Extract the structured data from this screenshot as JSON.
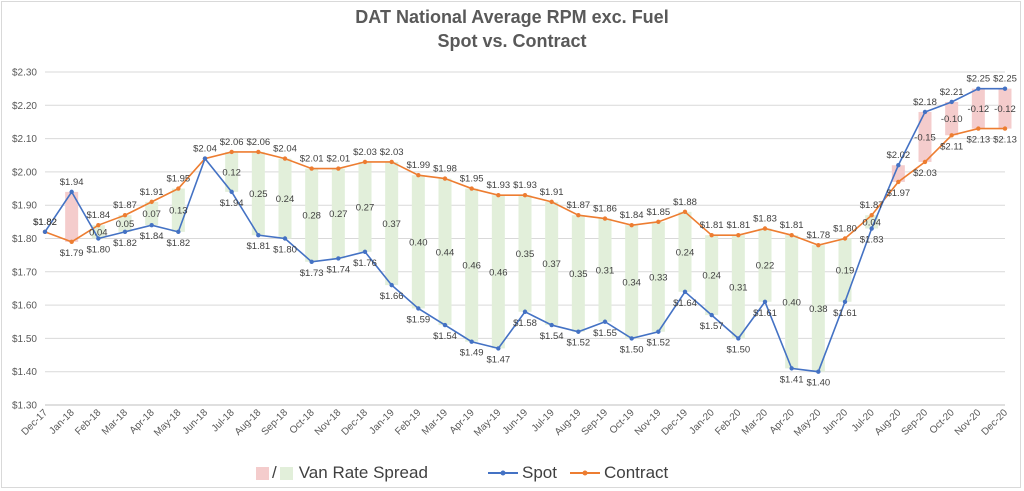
{
  "chart_data": {
    "type": "line",
    "title": "DAT National Average RPM exc. Fuel",
    "subtitle": "Spot vs. Contract",
    "categories": [
      "Dec-17",
      "Jan-18",
      "Feb-18",
      "Mar-18",
      "Apr-18",
      "May-18",
      "Jun-18",
      "Jul-18",
      "Aug-18",
      "Sep-18",
      "Oct-18",
      "Nov-18",
      "Dec-18",
      "Jan-19",
      "Feb-19",
      "Mar-19",
      "Apr-19",
      "May-19",
      "Jun-19",
      "Jul-19",
      "Aug-19",
      "Sep-19",
      "Oct-19",
      "Nov-19",
      "Dec-19",
      "Jan-20",
      "Feb-20",
      "Mar-20",
      "Apr-20",
      "May-20",
      "Jun-20",
      "Jul-20",
      "Aug-20",
      "Sep-20",
      "Oct-20",
      "Nov-20",
      "Dec-20"
    ],
    "series": [
      {
        "name": "Spot",
        "values": [
          1.82,
          1.94,
          1.8,
          1.82,
          1.84,
          1.82,
          2.04,
          1.94,
          1.81,
          1.8,
          1.73,
          1.74,
          1.76,
          1.66,
          1.59,
          1.54,
          1.49,
          1.47,
          1.58,
          1.54,
          1.52,
          1.55,
          1.5,
          1.52,
          1.64,
          1.57,
          1.5,
          1.61,
          1.41,
          1.4,
          1.61,
          1.83,
          2.02,
          2.18,
          2.21,
          2.25,
          2.25
        ]
      },
      {
        "name": "Contract",
        "values": [
          1.82,
          1.79,
          1.84,
          1.87,
          1.91,
          1.95,
          2.04,
          2.06,
          2.06,
          2.04,
          2.01,
          2.01,
          2.03,
          2.03,
          1.99,
          1.98,
          1.95,
          1.93,
          1.93,
          1.91,
          1.87,
          1.86,
          1.84,
          1.85,
          1.88,
          1.81,
          1.81,
          1.83,
          1.81,
          1.78,
          1.8,
          1.87,
          1.97,
          2.03,
          2.11,
          2.13,
          2.13
        ]
      }
    ],
    "spread_labels": [
      "",
      "",
      "0.04",
      "0.05",
      "0.07",
      "0.13",
      "",
      "0.12",
      "0.25",
      "0.24",
      "0.28",
      "0.27",
      "0.27",
      "0.37",
      "0.40",
      "0.44",
      "0.46",
      "0.46",
      "0.35",
      "0.37",
      "0.35",
      "0.31",
      "0.34",
      "0.33",
      "0.24",
      "0.24",
      "0.31",
      "0.22",
      "0.40",
      "0.38",
      "0.19",
      "0.04",
      "",
      "-0.15",
      "-0.10",
      "-0.12",
      "-0.12"
    ],
    "spot_labels": [
      "$1.82",
      "$1.94",
      "$1.80",
      "$1.82",
      "$1.84",
      "$1.82",
      "$2.04",
      "$1.94",
      "$1.81",
      "$1.80",
      "$1.73",
      "$1.74",
      "$1.76",
      "$1.66",
      "$1.59",
      "$1.54",
      "$1.49",
      "$1.47",
      "$1.58",
      "$1.54",
      "$1.52",
      "$1.55",
      "$1.50",
      "$1.52",
      "$1.64",
      "$1.57",
      "$1.50",
      "$1.61",
      "$1.41",
      "$1.40",
      "$1.61",
      "$1.83",
      "$2.02",
      "$2.18",
      "$2.21",
      "$2.25",
      "$2.25"
    ],
    "contract_labels": [
      "$1.82",
      "$1.79",
      "$1.84",
      "$1.87",
      "$1.91",
      "$1.95",
      "",
      "$2.06",
      "$2.06",
      "$2.04",
      "$2.01",
      "$2.01",
      "$2.03",
      "$2.03",
      "$1.99",
      "$1.98",
      "$1.95",
      "$1.93",
      "$1.93",
      "$1.91",
      "$1.87",
      "$1.86",
      "$1.84",
      "$1.85",
      "$1.88",
      "$1.81",
      "$1.81",
      "$1.83",
      "$1.81",
      "$1.78",
      "$1.80",
      "$1.87",
      "$1.97",
      "$2.03",
      "$2.11",
      "$2.13",
      "$2.13"
    ],
    "y_ticks": [
      "$1.30",
      "$1.40",
      "$1.50",
      "$1.60",
      "$1.70",
      "$1.80",
      "$1.90",
      "$2.00",
      "$2.10",
      "$2.20",
      "$2.30"
    ],
    "ylim": [
      1.3,
      2.3
    ],
    "grid": true,
    "legend_position": "bottom",
    "colors": {
      "spot": "#4472c4",
      "contract": "#ed7d31",
      "spread_positive": "#e2efda",
      "spread_negative": "#f4cccc",
      "grid": "#d9d9d9",
      "text": "#595959"
    }
  },
  "legend": {
    "spread_separator": "/",
    "spread_label": "Van Rate Spread",
    "spot_label": "Spot",
    "contract_label": "Contract"
  }
}
